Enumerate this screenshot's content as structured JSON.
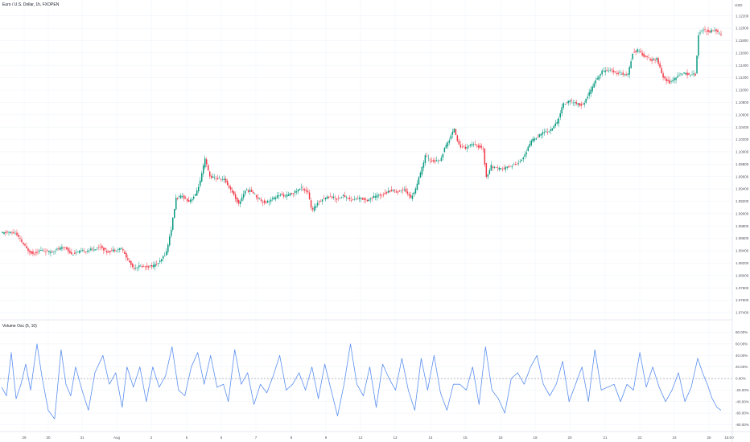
{
  "chart_data": [
    {
      "type": "candlestick",
      "title": "Euro / U.S. Dollar, 1h, FXOPEN",
      "currency": "USD",
      "y_ticks": [
        "1.12200",
        "1.12000",
        "1.11800",
        "1.11600",
        "1.11400",
        "1.11200",
        "1.11000",
        "1.10800",
        "1.10600",
        "1.10400",
        "1.10200",
        "1.10000",
        "1.09800",
        "1.09600",
        "1.09400",
        "1.09200",
        "1.09000",
        "1.08800",
        "1.08600",
        "1.08400",
        "1.08200",
        "1.08000",
        "1.07800",
        "1.07600",
        "1.07400"
      ],
      "ylim": [
        1.0736,
        1.123
      ],
      "x_ticks": [
        "29",
        "30",
        "31",
        "Aug",
        "2",
        "5",
        "6",
        "7",
        "8",
        "9",
        "12",
        "13",
        "14",
        "15",
        "16",
        "19",
        "20",
        "21",
        "22",
        "23",
        "26",
        "15:00"
      ],
      "colors": {
        "up": "#089981",
        "down": "#f23645",
        "grid": "#f0f3fa"
      },
      "path": [
        [
          0,
          1.0868
        ],
        [
          10,
          1.087
        ],
        [
          18,
          1.0868
        ],
        [
          24,
          1.0858
        ],
        [
          32,
          1.0843
        ],
        [
          40,
          1.0835
        ],
        [
          50,
          1.0841
        ],
        [
          60,
          1.0838
        ],
        [
          70,
          1.0842
        ],
        [
          80,
          1.0846
        ],
        [
          88,
          1.0834
        ],
        [
          96,
          1.0838
        ],
        [
          106,
          1.084
        ],
        [
          116,
          1.0843
        ],
        [
          124,
          1.0847
        ],
        [
          132,
          1.0838
        ],
        [
          140,
          1.0841
        ],
        [
          150,
          1.0844
        ],
        [
          158,
          1.0825
        ],
        [
          165,
          1.0812
        ],
        [
          172,
          1.0815
        ],
        [
          180,
          1.0814
        ],
        [
          190,
          1.0816
        ],
        [
          198,
          1.0822
        ],
        [
          206,
          1.0838
        ],
        [
          212,
          1.0875
        ],
        [
          218,
          1.0925
        ],
        [
          226,
          1.0928
        ],
        [
          234,
          1.092
        ],
        [
          242,
          1.093
        ],
        [
          248,
          1.0952
        ],
        [
          254,
          1.0988
        ],
        [
          260,
          1.096
        ],
        [
          268,
          1.0957
        ],
        [
          278,
          1.0955
        ],
        [
          288,
          1.0935
        ],
        [
          296,
          1.0915
        ],
        [
          304,
          1.0938
        ],
        [
          312,
          1.0936
        ],
        [
          320,
          1.0925
        ],
        [
          328,
          1.0918
        ],
        [
          336,
          1.0922
        ],
        [
          346,
          1.093
        ],
        [
          356,
          1.0929
        ],
        [
          366,
          1.0935
        ],
        [
          374,
          1.0942
        ],
        [
          382,
          1.0935
        ],
        [
          387,
          1.0903
        ],
        [
          394,
          1.0918
        ],
        [
          402,
          1.0925
        ],
        [
          410,
          1.0928
        ],
        [
          418,
          1.0924
        ],
        [
          426,
          1.0929
        ],
        [
          436,
          1.0922
        ],
        [
          446,
          1.0925
        ],
        [
          456,
          1.0922
        ],
        [
          466,
          1.0928
        ],
        [
          476,
          1.0932
        ],
        [
          486,
          1.0938
        ],
        [
          494,
          1.0935
        ],
        [
          502,
          1.094
        ],
        [
          510,
          1.0925
        ],
        [
          516,
          1.094
        ],
        [
          522,
          1.0965
        ],
        [
          528,
          1.0993
        ],
        [
          536,
          1.0985
        ],
        [
          546,
          1.0985
        ],
        [
          552,
          1.1005
        ],
        [
          558,
          1.102
        ],
        [
          564,
          1.1038
        ],
        [
          570,
          1.101
        ],
        [
          578,
          1.1007
        ],
        [
          586,
          1.1012
        ],
        [
          592,
          1.101
        ],
        [
          600,
          1.1005
        ],
        [
          604,
          1.0958
        ],
        [
          610,
          1.0977
        ],
        [
          618,
          1.0972
        ],
        [
          626,
          1.0973
        ],
        [
          634,
          1.0977
        ],
        [
          644,
          1.0982
        ],
        [
          652,
          1.0995
        ],
        [
          660,
          1.1018
        ],
        [
          668,
          1.1025
        ],
        [
          676,
          1.1032
        ],
        [
          684,
          1.1035
        ],
        [
          692,
          1.1048
        ],
        [
          700,
          1.1078
        ],
        [
          708,
          1.1082
        ],
        [
          716,
          1.1078
        ],
        [
          724,
          1.1075
        ],
        [
          732,
          1.1095
        ],
        [
          740,
          1.1115
        ],
        [
          748,
          1.113
        ],
        [
          756,
          1.1133
        ],
        [
          764,
          1.1128
        ],
        [
          772,
          1.1127
        ],
        [
          780,
          1.1125
        ],
        [
          786,
          1.116
        ],
        [
          792,
          1.1165
        ],
        [
          800,
          1.1155
        ],
        [
          808,
          1.1148
        ],
        [
          816,
          1.115
        ],
        [
          824,
          1.112
        ],
        [
          832,
          1.1112
        ],
        [
          840,
          1.112
        ],
        [
          848,
          1.1128
        ],
        [
          856,
          1.1125
        ],
        [
          864,
          1.1125
        ],
        [
          868,
          1.119
        ],
        [
          874,
          1.1197
        ],
        [
          882,
          1.1195
        ],
        [
          888,
          1.1198
        ],
        [
          895,
          1.119
        ]
      ]
    },
    {
      "type": "line",
      "title": "Volume Osc (5, 10)",
      "y_ticks": [
        "80.00%",
        "60.00%",
        "40.00%",
        "20.00%",
        "0.00%",
        "-20.00%",
        "-40.00%",
        "-60.00%",
        "-80.00%"
      ],
      "ylim": [
        -85,
        85
      ],
      "zero_line": 0,
      "colors": {
        "line": "#5b8fef",
        "zero": "#787b86"
      },
      "series": [
        {
          "values": [
            [
              0,
              -15
            ],
            [
              6,
              -30
            ],
            [
              12,
              45
            ],
            [
              18,
              -35
            ],
            [
              24,
              -10
            ],
            [
              30,
              25
            ],
            [
              36,
              -20
            ],
            [
              44,
              60
            ],
            [
              50,
              5
            ],
            [
              58,
              -55
            ],
            [
              66,
              -70
            ],
            [
              74,
              50
            ],
            [
              80,
              -10
            ],
            [
              86,
              -30
            ],
            [
              92,
              20
            ],
            [
              100,
              -20
            ],
            [
              108,
              -55
            ],
            [
              116,
              10
            ],
            [
              126,
              40
            ],
            [
              134,
              -10
            ],
            [
              142,
              10
            ],
            [
              150,
              -50
            ],
            [
              156,
              20
            ],
            [
              164,
              -15
            ],
            [
              172,
              20
            ],
            [
              180,
              -40
            ],
            [
              188,
              20
            ],
            [
              196,
              -15
            ],
            [
              204,
              5
            ],
            [
              212,
              55
            ],
            [
              220,
              -20
            ],
            [
              228,
              -30
            ],
            [
              236,
              20
            ],
            [
              244,
              45
            ],
            [
              252,
              -10
            ],
            [
              260,
              40
            ],
            [
              268,
              -15
            ],
            [
              276,
              -10
            ],
            [
              282,
              -40
            ],
            [
              290,
              50
            ],
            [
              298,
              -10
            ],
            [
              306,
              10
            ],
            [
              314,
              -45
            ],
            [
              322,
              -10
            ],
            [
              330,
              -25
            ],
            [
              338,
              5
            ],
            [
              346,
              40
            ],
            [
              354,
              -20
            ],
            [
              362,
              -10
            ],
            [
              370,
              10
            ],
            [
              378,
              -20
            ],
            [
              386,
              20
            ],
            [
              394,
              -35
            ],
            [
              402,
              25
            ],
            [
              410,
              -20
            ],
            [
              418,
              -65
            ],
            [
              426,
              -10
            ],
            [
              434,
              60
            ],
            [
              442,
              -10
            ],
            [
              450,
              -30
            ],
            [
              458,
              20
            ],
            [
              466,
              -50
            ],
            [
              474,
              25
            ],
            [
              482,
              0
            ],
            [
              490,
              -20
            ],
            [
              498,
              35
            ],
            [
              506,
              -20
            ],
            [
              514,
              -55
            ],
            [
              522,
              35
            ],
            [
              530,
              -20
            ],
            [
              538,
              40
            ],
            [
              546,
              -25
            ],
            [
              554,
              -55
            ],
            [
              562,
              -10
            ],
            [
              570,
              -10
            ],
            [
              578,
              -20
            ],
            [
              586,
              20
            ],
            [
              594,
              -45
            ],
            [
              602,
              55
            ],
            [
              610,
              -20
            ],
            [
              618,
              -35
            ],
            [
              626,
              -60
            ],
            [
              634,
              0
            ],
            [
              642,
              10
            ],
            [
              650,
              -10
            ],
            [
              658,
              20
            ],
            [
              666,
              40
            ],
            [
              674,
              -10
            ],
            [
              682,
              -30
            ],
            [
              690,
              -10
            ],
            [
              698,
              30
            ],
            [
              706,
              -40
            ],
            [
              714,
              -10
            ],
            [
              722,
              20
            ],
            [
              730,
              -40
            ],
            [
              738,
              50
            ],
            [
              746,
              -20
            ],
            [
              754,
              -15
            ],
            [
              762,
              -10
            ],
            [
              770,
              -40
            ],
            [
              778,
              -10
            ],
            [
              786,
              -20
            ],
            [
              794,
              45
            ],
            [
              802,
              -15
            ],
            [
              810,
              20
            ],
            [
              818,
              -15
            ],
            [
              826,
              -40
            ],
            [
              834,
              -20
            ],
            [
              842,
              10
            ],
            [
              850,
              -40
            ],
            [
              858,
              -15
            ],
            [
              866,
              35
            ],
            [
              872,
              10
            ],
            [
              878,
              -10
            ],
            [
              884,
              -35
            ],
            [
              890,
              -50
            ],
            [
              895,
              -55
            ]
          ]
        }
      ]
    }
  ]
}
